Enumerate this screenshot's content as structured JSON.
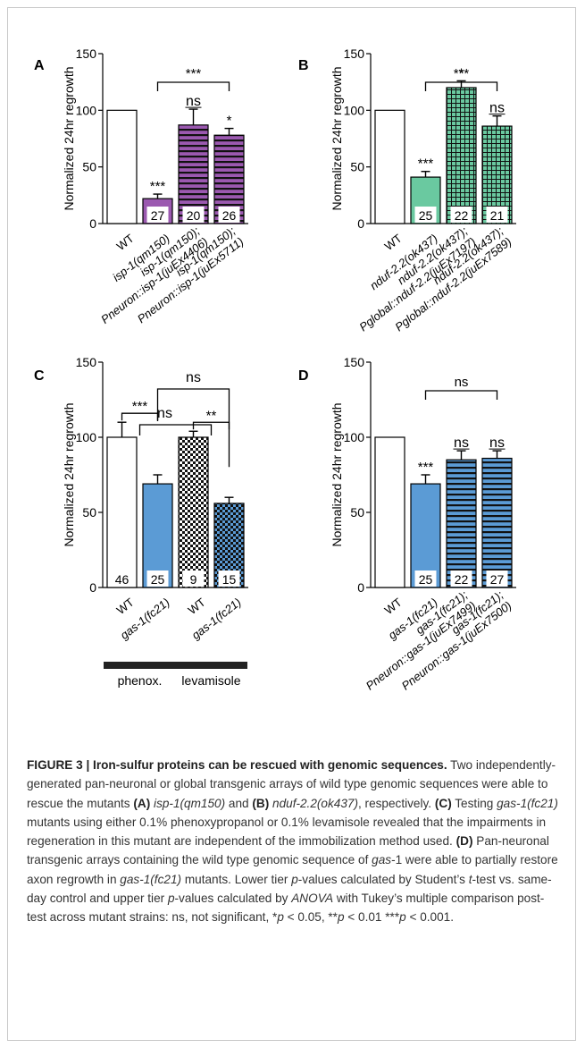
{
  "colors": {
    "white_bar": "#ffffff",
    "purple": "#9b59b0",
    "green": "#6ac9a0",
    "blue": "#5b9bd5",
    "stripe": "#111111"
  },
  "chart_data": [
    {
      "panel": "A",
      "type": "bar",
      "ylabel": "Normalized 24hr regrowth",
      "ylim": [
        0,
        150
      ],
      "yticks": [
        "0",
        "50",
        "100",
        "150"
      ],
      "categories": [
        "WT",
        "isp-1(qm150)",
        "isp-1(qm150);\nPneuron::isp-1(juEx4406)",
        "isp-1(qm150);\nPneuron::isp-1(juEx5711)"
      ],
      "values": [
        100,
        22,
        87,
        78
      ],
      "errors": [
        0,
        4,
        14,
        6
      ],
      "fills": [
        "white",
        "purple",
        "purple-stripes",
        "purple-stripes"
      ],
      "n_labels": [
        "",
        "27",
        "20",
        "26"
      ],
      "bar_sig": [
        "",
        "***",
        "ns",
        "*"
      ],
      "bracket": {
        "from": 1,
        "to": 3,
        "label": "***"
      }
    },
    {
      "panel": "B",
      "type": "bar",
      "ylabel": "Normalized 24hr regrowth",
      "ylim": [
        0,
        150
      ],
      "yticks": [
        "0",
        "50",
        "100",
        "150"
      ],
      "categories": [
        "WT",
        "nduf-2.2(ok437)",
        "nduf-2.2(ok437);\nPglobal::nduf-2.2(juEx7197)",
        "nduf-2.2(ok437);\nPglobal::nduf-2.2(juEx7589)"
      ],
      "values": [
        100,
        41,
        120,
        86
      ],
      "errors": [
        0,
        5,
        6,
        9
      ],
      "fills": [
        "white",
        "green",
        "green-grid",
        "green-grid"
      ],
      "n_labels": [
        "",
        "25",
        "22",
        "21"
      ],
      "bar_sig": [
        "",
        "***",
        "*",
        "ns"
      ],
      "bracket": {
        "from": 1,
        "to": 3,
        "label": "***"
      }
    },
    {
      "panel": "C",
      "type": "bar",
      "ylabel": "Normalized 24hr regrowth",
      "ylim": [
        0,
        150
      ],
      "yticks": [
        "0",
        "50",
        "100",
        "150"
      ],
      "categories": [
        "WT",
        "gas-1(fc21)",
        "WT",
        "gas-1(fc21)"
      ],
      "values": [
        100,
        69,
        100,
        56
      ],
      "errors": [
        10,
        6,
        4,
        4
      ],
      "fills": [
        "white",
        "blue",
        "checker",
        "blue-checker"
      ],
      "n_labels": [
        "46",
        "25",
        "9",
        "15"
      ],
      "pair_brackets": [
        {
          "from": 0,
          "to": 1,
          "label": "***"
        },
        {
          "from": 2,
          "to": 3,
          "label": "**"
        }
      ],
      "upper_brackets": [
        {
          "label": "ns"
        },
        {
          "label": "ns"
        }
      ],
      "groups": [
        {
          "label": "phenox."
        },
        {
          "label": "levamisole"
        }
      ]
    },
    {
      "panel": "D",
      "type": "bar",
      "ylabel": "Normalized 24hr regrowth",
      "ylim": [
        0,
        150
      ],
      "yticks": [
        "0",
        "50",
        "100",
        "150"
      ],
      "categories": [
        "WT",
        "gas-1(fc21)",
        "gas-1(fc21);\nPneuron::gas-1(juEx7499)",
        "gas-1(fc21);\nPneuron::gas-1(juEx7500)"
      ],
      "values": [
        100,
        69,
        85,
        86
      ],
      "errors": [
        0,
        6,
        6,
        5
      ],
      "fills": [
        "white",
        "blue",
        "blue-stripes",
        "blue-stripes"
      ],
      "n_labels": [
        "",
        "25",
        "22",
        "27"
      ],
      "bar_sig": [
        "",
        "***",
        "ns",
        "ns"
      ],
      "bracket": {
        "from": 1,
        "to": 3,
        "label": "ns"
      }
    }
  ],
  "caption": {
    "title": "FIGURE 3 | Iron-sulfur proteins can be rescued with genomic sequences.",
    "s1": " Two independently-generated pan-neuronal or global transgenic arrays of wild type genomic sequences were able to rescue the mutants ",
    "a_tag": "(A)",
    "a_gene": " isp-1(qm150)",
    "s2": " and ",
    "b_tag": "(B)",
    "b_gene": " nduf-2.2(ok437)",
    "s3": ", respectively. ",
    "c_tag": "(C)",
    "s4": " Testing ",
    "c_gene": "gas-1(fc21)",
    "s5": " mutants using either 0.1% phenoxypropanol or 0.1% levamisole revealed that the impairments in regeneration in this mutant are independent of the immobilization method used. ",
    "d_tag": "(D)",
    "s6": " Pan-neuronal transgenic arrays containing the wild type genomic sequence of ",
    "d_gene": "gas",
    "s7": "-1 were able to partially restore axon regrowth in ",
    "d_gene2": "gas-1(fc21)",
    "s8": " mutants. Lower tier ",
    "p1": "p",
    "s9": "-values calculated by Student’s ",
    "t": "t",
    "s10": "-test vs. same-day control and upper tier ",
    "p2": "p",
    "s11": "-values calculated by ",
    "anova": "ANOVA",
    "s12": " with Tukey’s multiple comparison post-test across mutant strains: ns, not significant, *",
    "p3": "p",
    "s13": " < 0.05, **",
    "p4": "p",
    "s14": " < 0.01 ***",
    "p5": "p",
    "s15": " < 0.001."
  }
}
